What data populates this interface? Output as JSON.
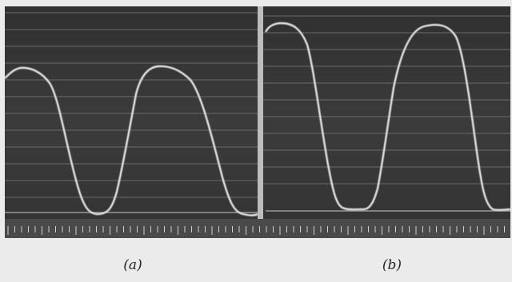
{
  "figure": {
    "panels": [
      {
        "label": "(a)",
        "trace": "rounded-wave"
      },
      {
        "label": "(b)",
        "trace": "flat-bottom-wave"
      }
    ],
    "colors": {
      "page": "#ebebeb",
      "film": "#3a3a3a",
      "film_dark": "#2c2c2c",
      "grid_line": "#7c7c7c",
      "trace": "#e4e4e4",
      "divider": "#bdbdbd",
      "ruler": "#4a4a4a",
      "tick": "#cfcfcf"
    }
  }
}
